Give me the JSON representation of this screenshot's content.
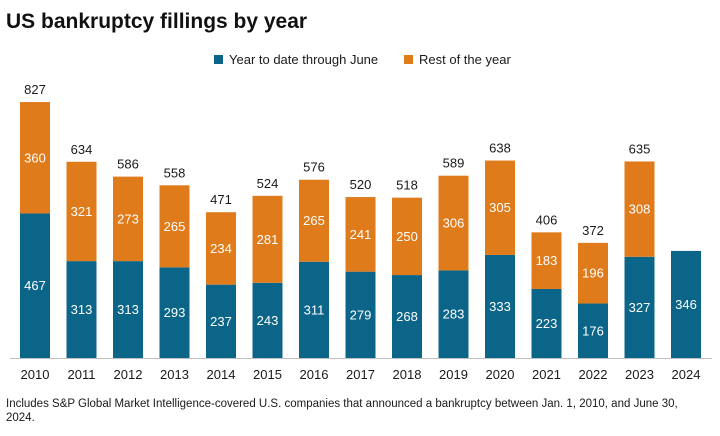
{
  "chart_data": {
    "type": "bar",
    "stacked": true,
    "title": "US bankruptcy fillings by year",
    "categories": [
      "2010",
      "2011",
      "2012",
      "2013",
      "2014",
      "2015",
      "2016",
      "2017",
      "2018",
      "2019",
      "2020",
      "2021",
      "2022",
      "2023",
      "2024"
    ],
    "series": [
      {
        "name": "Year to date through June",
        "color": "#0b6588",
        "values": [
          467,
          313,
          313,
          293,
          237,
          243,
          311,
          279,
          268,
          283,
          333,
          223,
          176,
          327,
          346
        ]
      },
      {
        "name": "Rest of the year",
        "color": "#e07b1b",
        "values": [
          360,
          321,
          273,
          265,
          234,
          281,
          265,
          241,
          250,
          306,
          305,
          183,
          196,
          308,
          null
        ]
      }
    ],
    "totals": [
      827,
      634,
      586,
      558,
      471,
      524,
      576,
      520,
      518,
      589,
      638,
      406,
      372,
      635,
      null
    ],
    "legend_position": "top-center",
    "grid": false,
    "xlabel": "",
    "ylabel": ""
  },
  "footnote": "Includes S&P Global Market Intelligence-covered U.S. companies that announced a bankruptcy between Jan. 1, 2010, and June 30, 2024."
}
